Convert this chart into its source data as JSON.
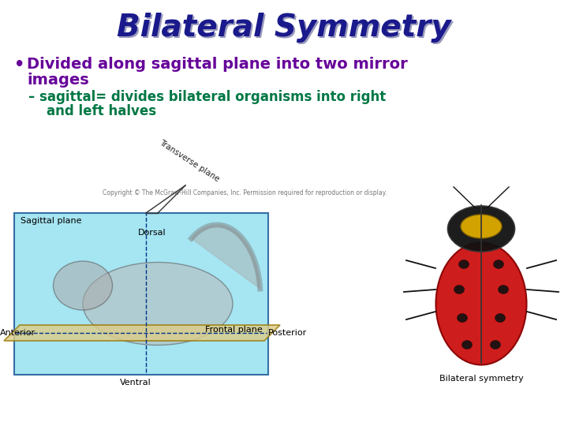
{
  "title": "Bilateral Symmetry",
  "title_color": "#1a1a8c",
  "title_fontsize": 28,
  "title_shadow_color": "#9999bb",
  "bg_color": "#ffffff",
  "bullet_text_line1": "Divided along sagittal plane into two mirror",
  "bullet_text_line2": "images",
  "bullet_color": "#660099",
  "bullet_fontsize": 14,
  "sub_bullet_line1": "– sagittal= divides bilateral organisms into right",
  "sub_bullet_line2": "    and left halves",
  "sub_bullet_color": "#007744",
  "sub_bullet_fontsize": 12,
  "copyright_text": "Copyright © The McGraw-Hill Companies, Inc. Permission required for reproduction or display.",
  "copyright_color": "#777777",
  "copyright_fontsize": 5.5,
  "squirrel_label_sagittal": "Sagittal plane",
  "squirrel_label_dorsal": "Dorsal",
  "squirrel_label_transverse": "Transverse plane",
  "squirrel_label_frontal": "Frontal plane",
  "squirrel_label_anterior": "Anterior",
  "squirrel_label_posterior": "Posterior",
  "squirrel_label_ventral": "Ventral",
  "beetle_label": "Bilateral symmetry",
  "squirrel_box_color": "#88ddee",
  "frontal_plane_color": "#ddcc88",
  "label_color": "#000000",
  "label_fontsize": 8,
  "squirrel_box_edge": "#004488"
}
